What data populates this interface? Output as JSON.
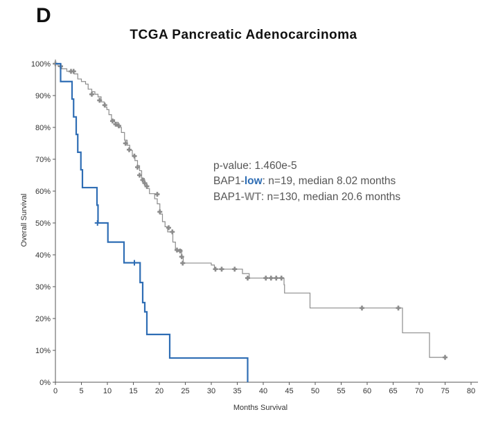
{
  "panel_label": "D",
  "colors": {
    "low": "#2e6db4",
    "wt": "#8c8c8c",
    "axis": "#555555",
    "text": "#555555"
  },
  "annotation": {
    "pvalue": "p-value: 1.460e-5",
    "low_prefix": "BAP1-",
    "low_emph": "low",
    "low_rest": ": n=19, median  8.02 months",
    "wt_prefix": "BAP1-",
    "wt_emph": "WT",
    "wt_rest": ": n=130, median 20.6 months"
  },
  "chart_data": {
    "type": "line",
    "title": "TCGA Pancreatic Adenocarcinoma",
    "xlabel": "Months Survival",
    "ylabel": "Overall Survival",
    "xlim": [
      0,
      80
    ],
    "ylim": [
      0,
      100
    ],
    "xticks": [
      0,
      5,
      10,
      15,
      20,
      25,
      30,
      35,
      40,
      45,
      50,
      55,
      60,
      65,
      70,
      75,
      80
    ],
    "yticks": [
      0,
      10,
      20,
      30,
      40,
      50,
      60,
      70,
      80,
      90,
      100
    ],
    "ytick_labels": [
      "0%",
      "10%",
      "20%",
      "30%",
      "40%",
      "50%",
      "60%",
      "70%",
      "80%",
      "90%",
      "100%"
    ],
    "grid": false,
    "series": [
      {
        "name": "BAP1-WT",
        "color": "#8c8c8c",
        "steps": [
          [
            0,
            100
          ],
          [
            0.5,
            99.2
          ],
          [
            1.2,
            98.4
          ],
          [
            2.2,
            97.6
          ],
          [
            3.6,
            96.8
          ],
          [
            4.3,
            95.2
          ],
          [
            5,
            94.4
          ],
          [
            5.8,
            93.6
          ],
          [
            6.3,
            92
          ],
          [
            7,
            91.2
          ],
          [
            7.6,
            90.4
          ],
          [
            8.2,
            89.6
          ],
          [
            8.8,
            88
          ],
          [
            9.4,
            86.4
          ],
          [
            9.9,
            85.6
          ],
          [
            10.3,
            84
          ],
          [
            10.8,
            82.4
          ],
          [
            11.4,
            81.6
          ],
          [
            12.1,
            80
          ],
          [
            12.7,
            78.4
          ],
          [
            13.3,
            76
          ],
          [
            13.8,
            74.4
          ],
          [
            14.3,
            72.8
          ],
          [
            14.8,
            71.2
          ],
          [
            15.3,
            69.6
          ],
          [
            15.8,
            68
          ],
          [
            16.2,
            66.4
          ],
          [
            16.6,
            64
          ],
          [
            17.1,
            62.4
          ],
          [
            17.6,
            60.8
          ],
          [
            18.1,
            59.2
          ],
          [
            19.1,
            57.6
          ],
          [
            19.6,
            56
          ],
          [
            20.1,
            52.8
          ],
          [
            20.6,
            50.4
          ],
          [
            21.1,
            48.8
          ],
          [
            21.6,
            47.2
          ],
          [
            22.6,
            44
          ],
          [
            23.1,
            41.6
          ],
          [
            24.3,
            39.2
          ],
          [
            24.6,
            37.4
          ],
          [
            30,
            36.8
          ],
          [
            30.6,
            35.5
          ],
          [
            36,
            34.1
          ],
          [
            37.3,
            32.7
          ],
          [
            44,
            30.6
          ],
          [
            44.1,
            28
          ],
          [
            49,
            23.3
          ],
          [
            66.8,
            15.5
          ],
          [
            72,
            7.8
          ],
          [
            75,
            7.8
          ]
        ],
        "censors": [
          [
            0,
            100
          ],
          [
            1,
            99.2
          ],
          [
            3,
            97.6
          ],
          [
            3.5,
            97.6
          ],
          [
            7,
            90.4
          ],
          [
            8.5,
            88.5
          ],
          [
            9.5,
            87
          ],
          [
            11,
            82
          ],
          [
            11.6,
            81
          ],
          [
            12.2,
            80.5
          ],
          [
            13.5,
            75
          ],
          [
            14.2,
            73
          ],
          [
            15.2,
            71
          ],
          [
            15.8,
            67.5
          ],
          [
            16.2,
            65
          ],
          [
            16.8,
            63.5
          ],
          [
            17.2,
            62.5
          ],
          [
            17.6,
            61.5
          ],
          [
            19.6,
            59
          ],
          [
            20.1,
            53.5
          ],
          [
            21.8,
            48.5
          ],
          [
            22.5,
            47.2
          ],
          [
            23.4,
            41.5
          ],
          [
            24,
            41.2
          ],
          [
            24.3,
            39.4
          ],
          [
            24.5,
            37.4
          ],
          [
            30.8,
            35.5
          ],
          [
            32,
            35.5
          ],
          [
            34.5,
            35.5
          ],
          [
            37,
            32.7
          ],
          [
            40.5,
            32.7
          ],
          [
            41.5,
            32.7
          ],
          [
            42.5,
            32.7
          ],
          [
            43.5,
            32.7
          ],
          [
            59,
            23.3
          ],
          [
            66,
            23.3
          ],
          [
            75,
            7.8
          ]
        ]
      },
      {
        "name": "BAP1-low",
        "color": "#2e6db4",
        "steps": [
          [
            0,
            100
          ],
          [
            1,
            94.4
          ],
          [
            3.2,
            88.9
          ],
          [
            3.5,
            83.3
          ],
          [
            4,
            77.8
          ],
          [
            4.3,
            72.2
          ],
          [
            4.9,
            66.7
          ],
          [
            5.2,
            61.1
          ],
          [
            8,
            55.6
          ],
          [
            8.2,
            50
          ],
          [
            10.1,
            44
          ],
          [
            13.2,
            37.5
          ],
          [
            16.3,
            31.3
          ],
          [
            16.8,
            25
          ],
          [
            17.2,
            22.1
          ],
          [
            17.6,
            15
          ],
          [
            22,
            7.6
          ],
          [
            37,
            7.6
          ],
          [
            37,
            0
          ]
        ],
        "censors": [
          [
            8.1,
            50
          ],
          [
            15.2,
            37.5
          ]
        ]
      }
    ]
  }
}
